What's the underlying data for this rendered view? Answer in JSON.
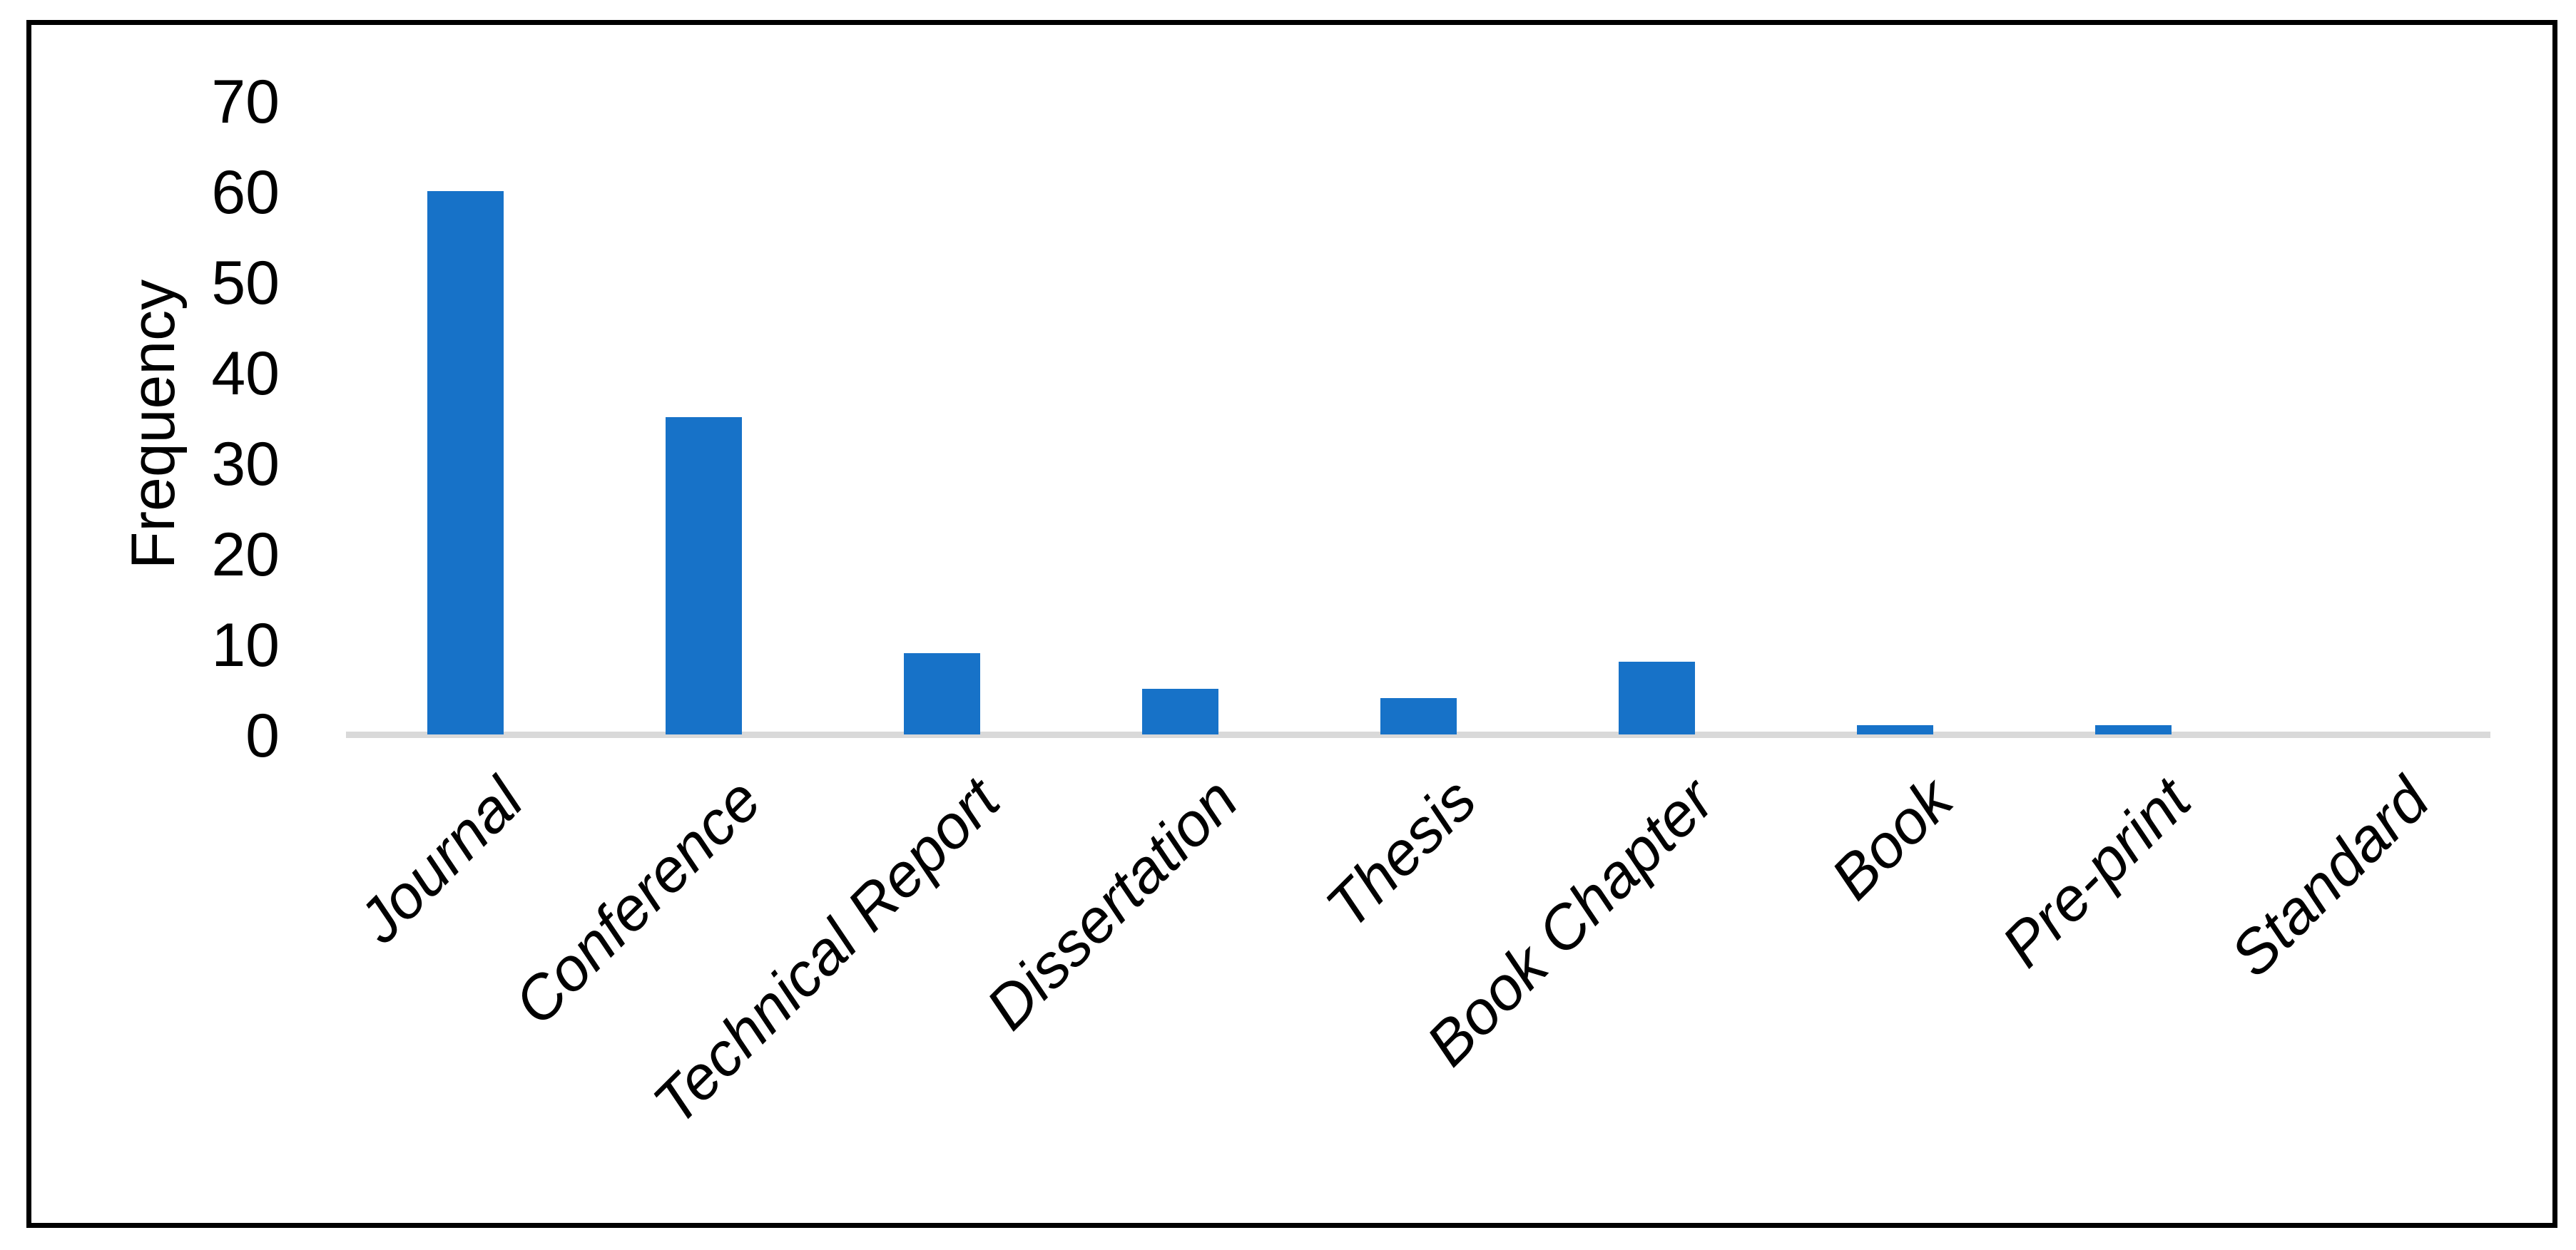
{
  "chart_data": {
    "type": "bar",
    "title": "",
    "categories": [
      "Journal",
      "Conference",
      "Technical Report",
      "Dissertation",
      "Thesis",
      "Book Chapter",
      "Book",
      "Pre-print",
      "Standard"
    ],
    "values": [
      60,
      35,
      9,
      5,
      4,
      8,
      1,
      1,
      0
    ],
    "xlabel": "",
    "ylabel": "Frequency",
    "ylim": [
      0,
      70
    ],
    "yticks": [
      0,
      10,
      20,
      30,
      40,
      50,
      60,
      70
    ],
    "grid": "off",
    "legend": "none",
    "bar_color": "#1772c8",
    "baseline_color": "#d9d9d9",
    "text_color": "#000000",
    "frame_color": "#000000"
  }
}
